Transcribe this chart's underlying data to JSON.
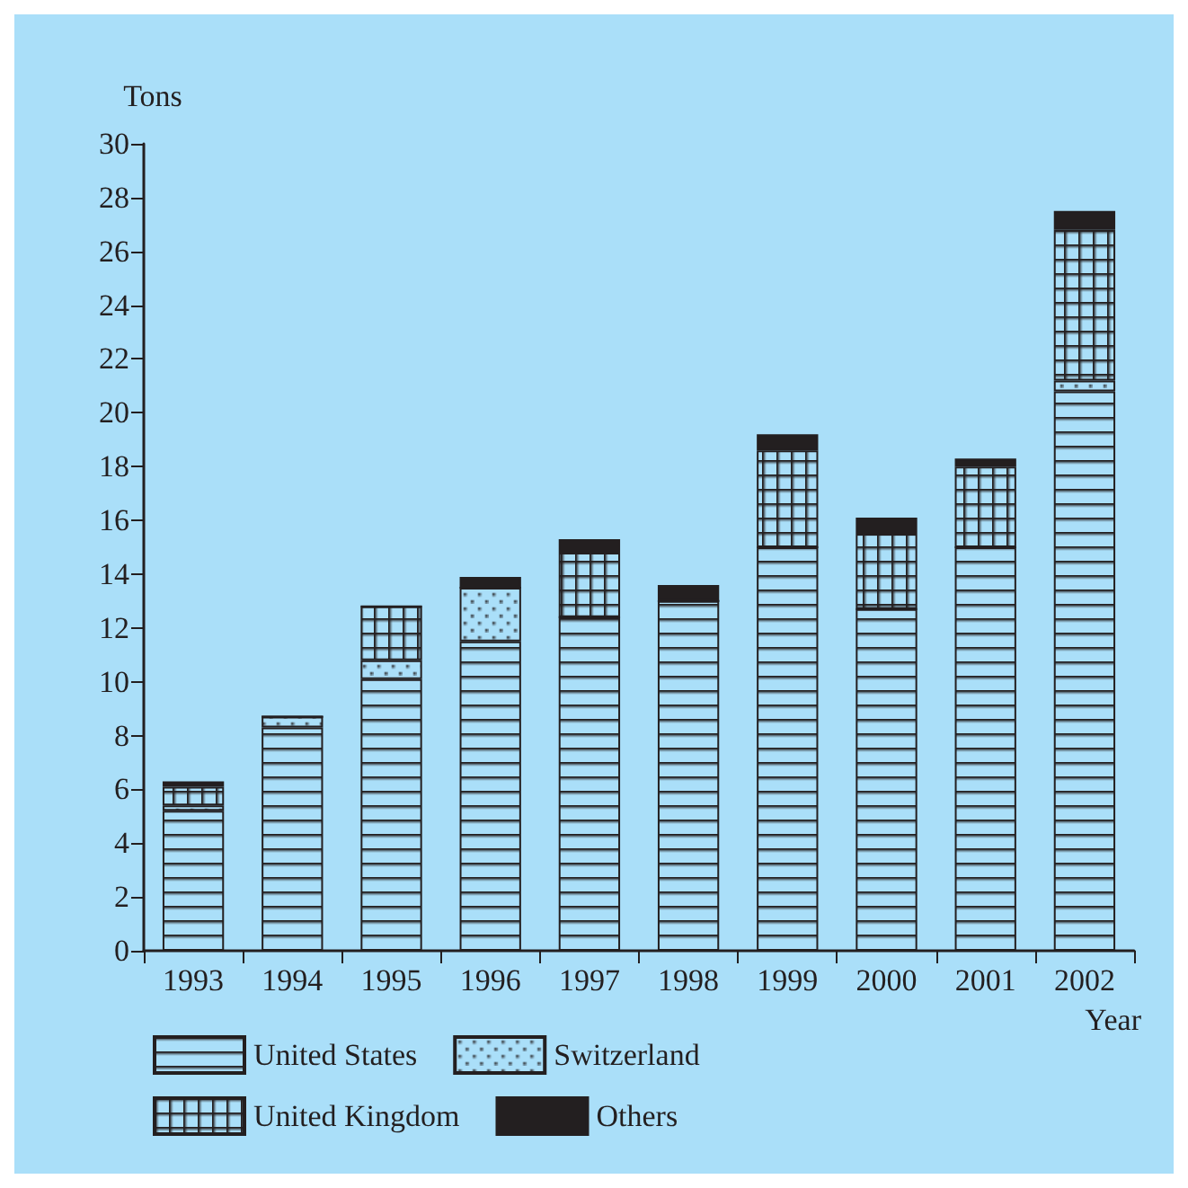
{
  "chart_data": {
    "type": "bar",
    "stacked": true,
    "ylabel": "Tons",
    "xlabel": "Year",
    "categories": [
      "1993",
      "1994",
      "1995",
      "1996",
      "1997",
      "1998",
      "1999",
      "2000",
      "2001",
      "2002"
    ],
    "series": [
      {
        "name": "United States",
        "color": "#231f20",
        "values": [
          5.2,
          8.3,
          10.1,
          11.5,
          12.4,
          13.0,
          15.0,
          12.7,
          15.0,
          20.8
        ]
      },
      {
        "name": "Switzerland",
        "color": "#231f20",
        "values": [
          0.2,
          0.4,
          0.7,
          2.0,
          0,
          0,
          0,
          0,
          0,
          0.4
        ]
      },
      {
        "name": "United Kingdom",
        "color": "#231f20",
        "values": [
          0.7,
          0,
          2.0,
          0,
          2.4,
          0,
          3.6,
          2.8,
          3.0,
          5.6
        ]
      },
      {
        "name": "Others",
        "color": "#231f20",
        "values": [
          0.2,
          0,
          0,
          0.4,
          0.5,
          0.6,
          0.6,
          0.6,
          0.3,
          0.7
        ]
      }
    ],
    "ylim": [
      0,
      30
    ],
    "yticks": [
      0,
      2,
      4,
      6,
      8,
      10,
      12,
      14,
      16,
      18,
      20,
      22,
      24,
      26,
      28,
      30
    ],
    "grid": false,
    "legend": "bottom"
  }
}
